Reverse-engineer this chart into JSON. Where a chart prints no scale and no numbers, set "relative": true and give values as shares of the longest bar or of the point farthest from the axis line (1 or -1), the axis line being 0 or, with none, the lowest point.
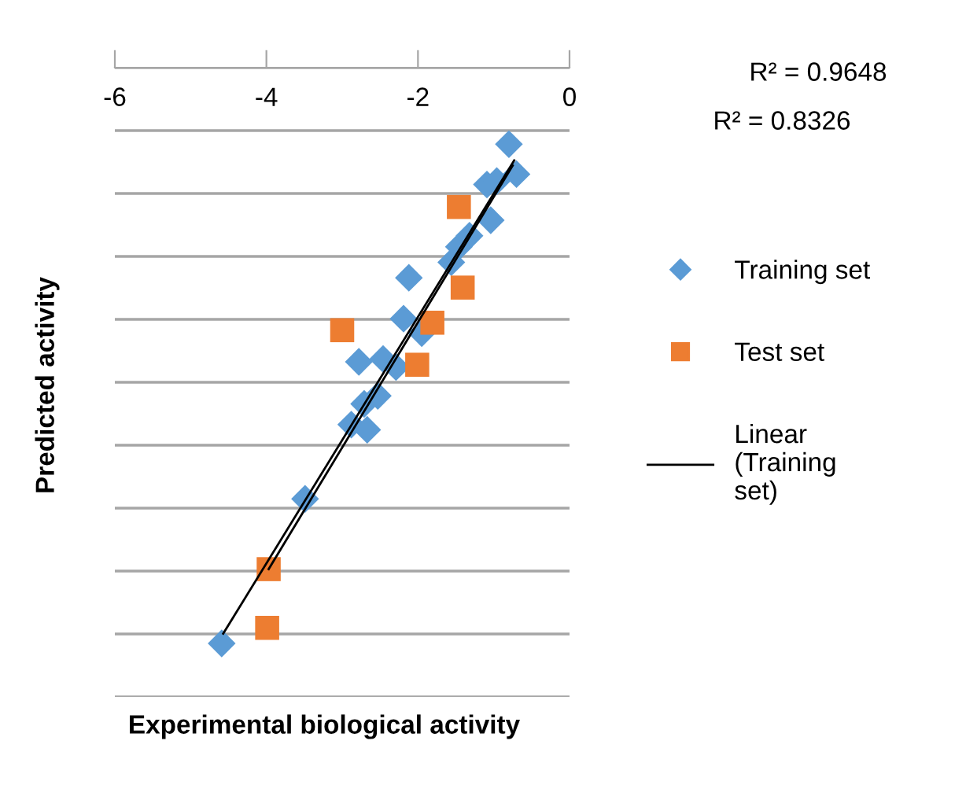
{
  "chart_data": {
    "type": "scatter",
    "relative": true,
    "xlabel": "Experimental biological activity",
    "ylabel": "Predicted activity",
    "annotations": [
      "R² = 0.9648",
      "R² = 0.8326"
    ],
    "xlim": [
      -6,
      0
    ],
    "xticks": [
      -6,
      -4,
      -2,
      0
    ],
    "tick_labels": "x",
    "grid": "y",
    "legend": "right",
    "series": [
      {
        "name": "Training set",
        "color": "#5b9bd5",
        "marker": "diamond",
        "x": [
          -0.8,
          -0.7,
          -1.09,
          -0.96,
          -1.04,
          -1.32,
          -1.46,
          -1.56,
          -2.12,
          -2.19,
          -1.95,
          -2.78,
          -2.46,
          -2.29,
          -2.53,
          -2.71,
          -2.88,
          -2.67,
          -3.49,
          -4.59
        ],
        "values": [
          -0.133,
          -0.185,
          -0.203,
          -0.197,
          -0.265,
          -0.292,
          -0.311,
          -0.338,
          -0.365,
          -0.436,
          -0.461,
          -0.511,
          -0.506,
          -0.52,
          -0.57,
          -0.584,
          -0.62,
          -0.629,
          -0.749,
          -1.0
        ]
      },
      {
        "name": "Test set",
        "color": "#ed7d31",
        "marker": "square",
        "x": [
          -1.46,
          -1.41,
          -3.0,
          -1.81,
          -2.01,
          -3.97,
          -3.99
        ],
        "values": [
          -0.242,
          -0.382,
          -0.456,
          -0.443,
          -0.516,
          -0.871,
          -0.973
        ]
      },
      {
        "name": "Linear (Training set)",
        "type": "line",
        "color": "#000000",
        "x": [
          -4.57,
          -0.73
        ],
        "values": [
          -0.983,
          -0.161
        ]
      },
      {
        "type": "line",
        "color": "#000000",
        "x": [
          -3.97,
          -0.75
        ],
        "values": [
          -0.871,
          -0.17
        ]
      }
    ]
  }
}
